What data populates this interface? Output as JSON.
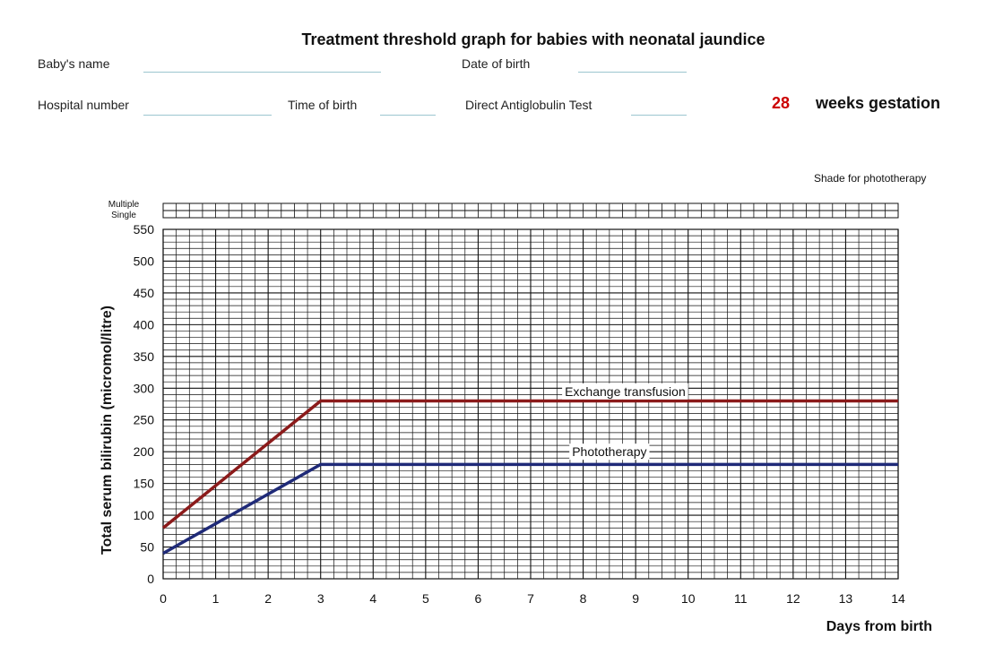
{
  "form": {
    "title": "Treatment threshold graph for babies with neonatal jaundice",
    "babys_name_label": "Baby's name",
    "date_of_birth_label": "Date of birth",
    "hospital_number_label": "Hospital number",
    "time_of_birth_label": "Time of birth",
    "dat_label": "Direct Antiglobulin Test",
    "gestation_weeks": "28",
    "gestation_label": "weeks gestation",
    "shade_label": "Shade for phototherapy",
    "multiple_label": "Multiple",
    "single_label": "Single"
  },
  "chart_data": {
    "type": "line",
    "title": "Treatment threshold graph for babies with neonatal jaundice",
    "xlabel": "Days from birth",
    "ylabel": "Total serum bilirubin  (micromol/litre)",
    "xlim": [
      0,
      14
    ],
    "ylim": [
      0,
      550
    ],
    "x_ticks": [
      0,
      1,
      2,
      3,
      4,
      5,
      6,
      7,
      8,
      9,
      10,
      11,
      12,
      13,
      14
    ],
    "y_ticks": [
      0,
      50,
      100,
      150,
      200,
      250,
      300,
      350,
      400,
      450,
      500,
      550
    ],
    "grid": true,
    "series": [
      {
        "name": "Exchange transfusion",
        "color": "#8b1a1a",
        "x": [
          0,
          3,
          14
        ],
        "y": [
          80,
          280,
          280
        ]
      },
      {
        "name": "Phototherapy",
        "color": "#1f2a78",
        "x": [
          0,
          3,
          14
        ],
        "y": [
          40,
          180,
          180
        ]
      }
    ]
  }
}
